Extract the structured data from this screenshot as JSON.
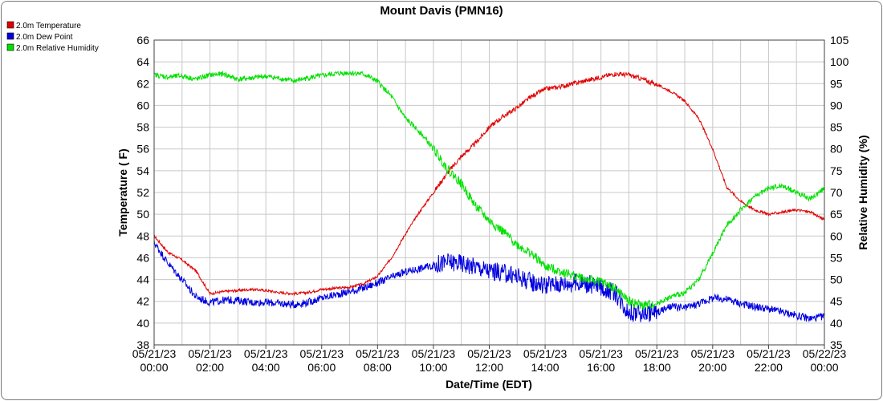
{
  "chart_data": {
    "type": "line",
    "title": "Mount Davis (PMN16)",
    "xlabel": "Date/Time (EDT)",
    "ylabel": "Temperature ( F)",
    "y2label": "Relative Humidity (%)",
    "ylim": [
      38,
      66
    ],
    "y2lim": [
      35,
      105
    ],
    "yticks": [
      "38",
      "40",
      "42",
      "44",
      "46",
      "48",
      "50",
      "52",
      "54",
      "56",
      "58",
      "60",
      "62",
      "64",
      "66"
    ],
    "y2ticks": [
      "35",
      "40",
      "45",
      "50",
      "55",
      "60",
      "65",
      "70",
      "75",
      "80",
      "85",
      "90",
      "95",
      "100",
      "105"
    ],
    "xticks": [
      {
        "date": "05/21/23",
        "time": "00:00"
      },
      {
        "date": "05/21/23",
        "time": "02:00"
      },
      {
        "date": "05/21/23",
        "time": "04:00"
      },
      {
        "date": "05/21/23",
        "time": "06:00"
      },
      {
        "date": "05/21/23",
        "time": "08:00"
      },
      {
        "date": "05/21/23",
        "time": "10:00"
      },
      {
        "date": "05/21/23",
        "time": "12:00"
      },
      {
        "date": "05/21/23",
        "time": "14:00"
      },
      {
        "date": "05/21/23",
        "time": "16:00"
      },
      {
        "date": "05/21/23",
        "time": "18:00"
      },
      {
        "date": "05/21/23",
        "time": "20:00"
      },
      {
        "date": "05/21/23",
        "time": "22:00"
      },
      {
        "date": "05/22/23",
        "time": "00:00"
      }
    ],
    "x_hours": [
      0,
      24
    ],
    "grid": true,
    "legend_position": "top-left",
    "series": [
      {
        "name": "2.0m Temperature",
        "color": "#e00000",
        "axis": "left",
        "x": [
          0,
          0.5,
          1,
          1.5,
          2,
          2.5,
          3,
          3.5,
          4,
          4.5,
          5,
          5.5,
          6,
          6.5,
          7,
          7.5,
          8,
          8.5,
          9,
          9.5,
          10,
          10.5,
          11,
          11.5,
          12,
          12.5,
          13,
          13.5,
          14,
          14.5,
          15,
          15.5,
          16,
          16.5,
          17,
          17.5,
          18,
          18.5,
          19,
          19.5,
          20,
          20.5,
          21,
          21.5,
          22,
          22.5,
          23,
          23.5,
          24
        ],
        "y": [
          48.0,
          46.5,
          45.8,
          44.8,
          42.7,
          42.9,
          43.0,
          43.1,
          43.0,
          42.8,
          42.7,
          42.8,
          43.1,
          43.2,
          43.3,
          43.6,
          44.3,
          46.0,
          48.2,
          50.2,
          52.0,
          53.8,
          55.3,
          56.5,
          58.0,
          59.0,
          59.8,
          60.8,
          61.5,
          61.7,
          62.0,
          62.3,
          62.6,
          62.9,
          62.8,
          62.4,
          61.9,
          61.3,
          60.4,
          58.8,
          56.0,
          52.5,
          51.2,
          50.4,
          50.0,
          50.2,
          50.4,
          50.2,
          49.5
        ]
      },
      {
        "name": "2.0m Dew Point",
        "color": "#0000e0",
        "axis": "left",
        "x": [
          0,
          0.5,
          1,
          1.5,
          2,
          2.5,
          3,
          3.5,
          4,
          4.5,
          5,
          5.5,
          6,
          6.5,
          7,
          7.5,
          8,
          8.5,
          9,
          9.5,
          10,
          10.5,
          11,
          11.5,
          12,
          12.5,
          13,
          13.5,
          14,
          14.5,
          15,
          15.5,
          16,
          16.5,
          17,
          17.5,
          18,
          18.5,
          19,
          19.5,
          20,
          20.5,
          21,
          21.5,
          22,
          22.5,
          23,
          23.5,
          24
        ],
        "y": [
          47.4,
          45.5,
          44.0,
          42.4,
          41.9,
          42.1,
          42.1,
          41.9,
          41.9,
          41.8,
          41.7,
          41.9,
          42.3,
          42.6,
          42.9,
          43.2,
          43.7,
          44.2,
          44.7,
          45.0,
          45.3,
          45.6,
          45.5,
          45.2,
          44.8,
          44.6,
          44.3,
          43.8,
          43.5,
          43.6,
          43.7,
          43.6,
          43.3,
          42.8,
          41.0,
          40.9,
          41.0,
          41.5,
          41.4,
          41.8,
          42.3,
          42.2,
          41.8,
          41.5,
          41.3,
          41.0,
          40.7,
          40.4,
          40.6
        ]
      },
      {
        "name": "2.0m Relative Humidity",
        "color": "#00e000",
        "axis": "right",
        "x": [
          0,
          0.5,
          1,
          1.5,
          2,
          2.5,
          3,
          3.5,
          4,
          4.5,
          5,
          5.5,
          6,
          6.5,
          7,
          7.5,
          8,
          8.5,
          9,
          9.5,
          10,
          10.5,
          11,
          11.5,
          12,
          12.5,
          13,
          13.5,
          14,
          14.5,
          15,
          15.5,
          16,
          16.5,
          17,
          17.5,
          18,
          18.5,
          19,
          19.5,
          20,
          20.5,
          21,
          21.5,
          22,
          22.5,
          23,
          23.5,
          24
        ],
        "y": [
          97.0,
          96.5,
          96.8,
          96.0,
          97.0,
          97.2,
          96.0,
          96.3,
          96.7,
          96.2,
          95.6,
          96.3,
          96.8,
          97.3,
          97.5,
          97.2,
          95.5,
          92.0,
          87.0,
          84.0,
          80.0,
          75.5,
          72.0,
          67.0,
          63.5,
          61.0,
          58.0,
          56.0,
          53.0,
          52.0,
          51.0,
          50.0,
          49.5,
          48.0,
          45.0,
          44.0,
          44.5,
          46.0,
          47.0,
          50.0,
          56.0,
          62.5,
          66.0,
          69.0,
          71.0,
          71.5,
          70.0,
          68.5,
          71.0
        ]
      }
    ]
  }
}
